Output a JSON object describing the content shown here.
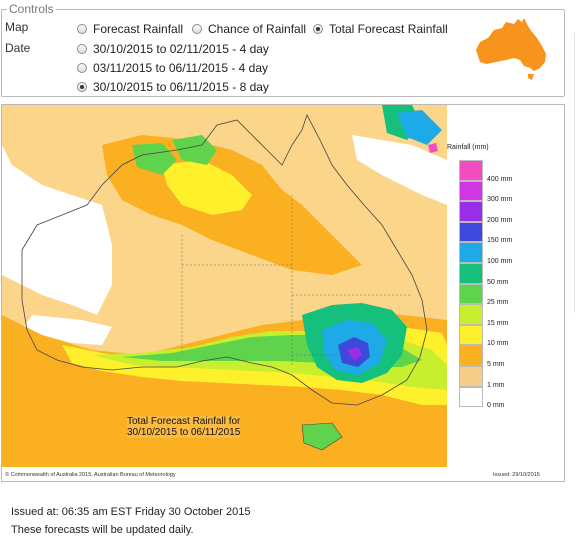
{
  "controls": {
    "title": "Controls",
    "map_label": "Map",
    "date_label": "Date",
    "map_options": [
      {
        "label": "Forecast Rainfall",
        "checked": false
      },
      {
        "label": "Chance of Rainfall",
        "checked": false
      },
      {
        "label": "Total Forecast Rainfall",
        "checked": true
      }
    ],
    "date_options": [
      {
        "label": "30/10/2015 to 02/11/2015 - 4 day",
        "checked": false
      },
      {
        "label": "03/11/2015 to 06/11/2015 - 4 day",
        "checked": false
      },
      {
        "label": "30/10/2015 to 06/11/2015 - 8 day",
        "checked": true
      }
    ]
  },
  "map": {
    "legend_title": "Rainfall (mm)",
    "legend": [
      {
        "label": "400 mm",
        "color": "#f24cc1"
      },
      {
        "label": "300 mm",
        "color": "#cf37e3"
      },
      {
        "label": "200 mm",
        "color": "#9a2ee8"
      },
      {
        "label": "150 mm",
        "color": "#3d49db"
      },
      {
        "label": "100 mm",
        "color": "#1eaae6"
      },
      {
        "label": "50 mm",
        "color": "#14c07b"
      },
      {
        "label": "25 mm",
        "color": "#5fd34b"
      },
      {
        "label": "15 mm",
        "color": "#c8ef2e"
      },
      {
        "label": "10 mm",
        "color": "#fff02c"
      },
      {
        "label": "5 mm",
        "color": "#fbb022"
      },
      {
        "label": "1 mm",
        "color": "#f4cd86"
      },
      {
        "label": "0 mm",
        "color": "#ffffff"
      }
    ],
    "inset_title": "Total Forecast Rainfall for",
    "inset_dates": "30/10/2015 to 06/11/2015",
    "copyright": "© Commonwealth of Australia 2015, Australian Bureau of Meteorology",
    "issued_small": "Issued: 29/10/2015",
    "mini_map_color": "#f7941d"
  },
  "footer": {
    "issued": "Issued at: 06:35 am EST Friday 30 October 2015",
    "updated": "These forecasts will be updated daily."
  }
}
